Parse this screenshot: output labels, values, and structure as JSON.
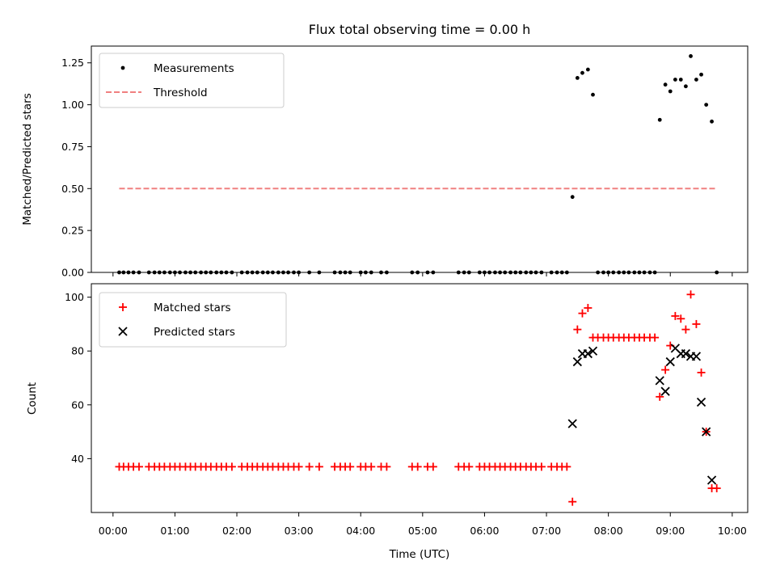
{
  "chart_data": [
    {
      "type": "scatter",
      "title": "Flux total observing time = 0.00 h",
      "xlabel": "",
      "ylabel": "Matched/Predicted stars",
      "xlim": [
        -0.35,
        10.25
      ],
      "ylim": [
        0,
        1.35
      ],
      "yticks": [
        {
          "v": 0,
          "label": "0.00"
        },
        {
          "v": 0.25,
          "label": "0.25"
        },
        {
          "v": 0.5,
          "label": "0.50"
        },
        {
          "v": 0.75,
          "label": "0.75"
        },
        {
          "v": 1.0,
          "label": "1.00"
        },
        {
          "v": 1.25,
          "label": "1.25"
        }
      ],
      "legend": {
        "position": "top-left",
        "entries": [
          "Measurements",
          "Threshold"
        ]
      },
      "series": [
        {
          "name": "Measurements",
          "color": "#000000",
          "marker": "dot",
          "x": [
            0.1,
            0.17,
            0.25,
            0.33,
            0.42,
            0.58,
            0.67,
            0.75,
            0.83,
            0.92,
            1.0,
            1.08,
            1.17,
            1.25,
            1.33,
            1.42,
            1.5,
            1.58,
            1.67,
            1.75,
            1.83,
            1.92,
            2.08,
            2.17,
            2.25,
            2.33,
            2.42,
            2.5,
            2.58,
            2.67,
            2.75,
            2.83,
            2.92,
            3.0,
            3.17,
            3.33,
            3.58,
            3.67,
            3.75,
            3.83,
            4.0,
            4.08,
            4.17,
            4.33,
            4.42,
            4.83,
            4.92,
            5.08,
            5.17,
            5.58,
            5.67,
            5.75,
            5.92,
            6.0,
            6.08,
            6.17,
            6.25,
            6.33,
            6.42,
            6.5,
            6.58,
            6.67,
            6.75,
            6.83,
            6.92,
            7.08,
            7.17,
            7.25,
            7.33,
            7.42,
            7.5,
            7.58,
            7.67,
            7.75,
            7.83,
            7.92,
            8.0,
            8.08,
            8.17,
            8.25,
            8.33,
            8.42,
            8.5,
            8.58,
            8.67,
            8.75,
            8.83,
            8.92,
            9.0,
            9.08,
            9.17,
            9.25,
            9.33,
            9.42,
            9.5,
            9.58,
            9.67,
            9.75
          ],
          "y": [
            0,
            0,
            0,
            0,
            0,
            0,
            0,
            0,
            0,
            0,
            0,
            0,
            0,
            0,
            0,
            0,
            0,
            0,
            0,
            0,
            0,
            0,
            0,
            0,
            0,
            0,
            0,
            0,
            0,
            0,
            0,
            0,
            0,
            0,
            0,
            0,
            0,
            0,
            0,
            0,
            0,
            0,
            0,
            0,
            0,
            0,
            0,
            0,
            0,
            0,
            0,
            0,
            0,
            0,
            0,
            0,
            0,
            0,
            0,
            0,
            0,
            0,
            0,
            0,
            0,
            0,
            0,
            0,
            0,
            0.45,
            1.16,
            1.19,
            1.21,
            1.06,
            0,
            0,
            0,
            0,
            0,
            0,
            0,
            0,
            0,
            0,
            0,
            0,
            0.91,
            1.12,
            1.08,
            1.15,
            1.15,
            1.11,
            1.29,
            1.15,
            1.18,
            1.0,
            0.9,
            0
          ]
        },
        {
          "name": "Threshold",
          "color": "#f08080",
          "line_style": "dashed",
          "x": [
            0.1,
            9.75
          ],
          "y": [
            0.5,
            0.5
          ]
        }
      ]
    },
    {
      "type": "scatter",
      "title": "",
      "xlabel": "Time (UTC)",
      "ylabel": "Count",
      "xlim": [
        -0.35,
        10.25
      ],
      "ylim": [
        20,
        105
      ],
      "yticks": [
        {
          "v": 40,
          "label": "40"
        },
        {
          "v": 60,
          "label": "60"
        },
        {
          "v": 80,
          "label": "80"
        },
        {
          "v": 100,
          "label": "100"
        }
      ],
      "xticks": [
        {
          "v": 0,
          "label": "00:00"
        },
        {
          "v": 1,
          "label": "01:00"
        },
        {
          "v": 2,
          "label": "02:00"
        },
        {
          "v": 3,
          "label": "03:00"
        },
        {
          "v": 4,
          "label": "04:00"
        },
        {
          "v": 5,
          "label": "05:00"
        },
        {
          "v": 6,
          "label": "06:00"
        },
        {
          "v": 7,
          "label": "07:00"
        },
        {
          "v": 8,
          "label": "08:00"
        },
        {
          "v": 9,
          "label": "09:00"
        },
        {
          "v": 10,
          "label": "10:00"
        }
      ],
      "legend": {
        "position": "top-left",
        "entries": [
          "Matched stars",
          "Predicted stars"
        ]
      },
      "series": [
        {
          "name": "Matched stars",
          "color": "#ff0000",
          "marker": "plus",
          "x": [
            0.1,
            0.17,
            0.25,
            0.33,
            0.42,
            0.58,
            0.67,
            0.75,
            0.83,
            0.92,
            1.0,
            1.08,
            1.17,
            1.25,
            1.33,
            1.42,
            1.5,
            1.58,
            1.67,
            1.75,
            1.83,
            1.92,
            2.08,
            2.17,
            2.25,
            2.33,
            2.42,
            2.5,
            2.58,
            2.67,
            2.75,
            2.83,
            2.92,
            3.0,
            3.17,
            3.33,
            3.58,
            3.67,
            3.75,
            3.83,
            4.0,
            4.08,
            4.17,
            4.33,
            4.42,
            4.83,
            4.92,
            5.08,
            5.17,
            5.58,
            5.67,
            5.75,
            5.92,
            6.0,
            6.08,
            6.17,
            6.25,
            6.33,
            6.42,
            6.5,
            6.58,
            6.67,
            6.75,
            6.83,
            6.92,
            7.08,
            7.17,
            7.25,
            7.33,
            7.42,
            7.5,
            7.58,
            7.67,
            7.75,
            7.83,
            7.92,
            8.0,
            8.08,
            8.17,
            8.25,
            8.33,
            8.42,
            8.5,
            8.58,
            8.67,
            8.75,
            8.83,
            8.92,
            9.0,
            9.08,
            9.17,
            9.25,
            9.33,
            9.42,
            9.5,
            9.58,
            9.67,
            9.75
          ],
          "y": [
            37,
            37,
            37,
            37,
            37,
            37,
            37,
            37,
            37,
            37,
            37,
            37,
            37,
            37,
            37,
            37,
            37,
            37,
            37,
            37,
            37,
            37,
            37,
            37,
            37,
            37,
            37,
            37,
            37,
            37,
            37,
            37,
            37,
            37,
            37,
            37,
            37,
            37,
            37,
            37,
            37,
            37,
            37,
            37,
            37,
            37,
            37,
            37,
            37,
            37,
            37,
            37,
            37,
            37,
            37,
            37,
            37,
            37,
            37,
            37,
            37,
            37,
            37,
            37,
            37,
            37,
            37,
            37,
            37,
            24,
            88,
            94,
            96,
            85,
            85,
            85,
            85,
            85,
            85,
            85,
            85,
            85,
            85,
            85,
            85,
            85,
            63,
            73,
            82,
            93,
            92,
            88,
            101,
            90,
            72,
            50,
            29,
            29
          ]
        },
        {
          "name": "Predicted stars",
          "color": "#000000",
          "marker": "x",
          "x": [
            7.42,
            7.5,
            7.58,
            7.67,
            7.75,
            8.83,
            8.92,
            9.0,
            9.08,
            9.17,
            9.25,
            9.33,
            9.42,
            9.5,
            9.58,
            9.67
          ],
          "y": [
            53,
            76,
            79,
            79,
            80,
            69,
            65,
            76,
            81,
            79,
            79,
            78,
            78,
            61,
            50,
            32
          ]
        }
      ]
    }
  ]
}
